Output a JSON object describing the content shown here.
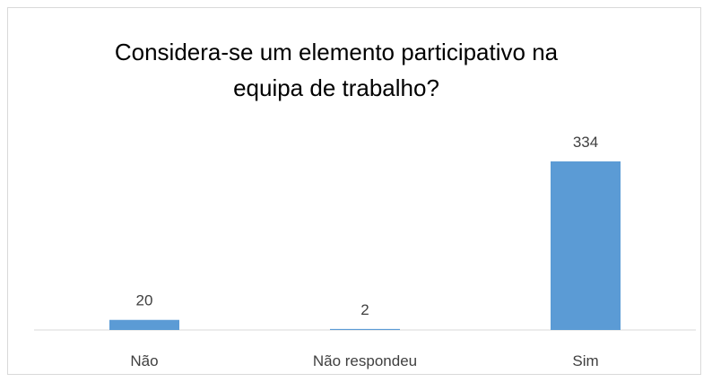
{
  "chart_data": {
    "type": "bar",
    "title": "Considera-se um elemento participativo na equipa de trabalho?",
    "categories": [
      "Não",
      "Não respondeu",
      "Sim"
    ],
    "values": [
      20,
      2,
      334
    ],
    "color": "#5b9bd5"
  }
}
